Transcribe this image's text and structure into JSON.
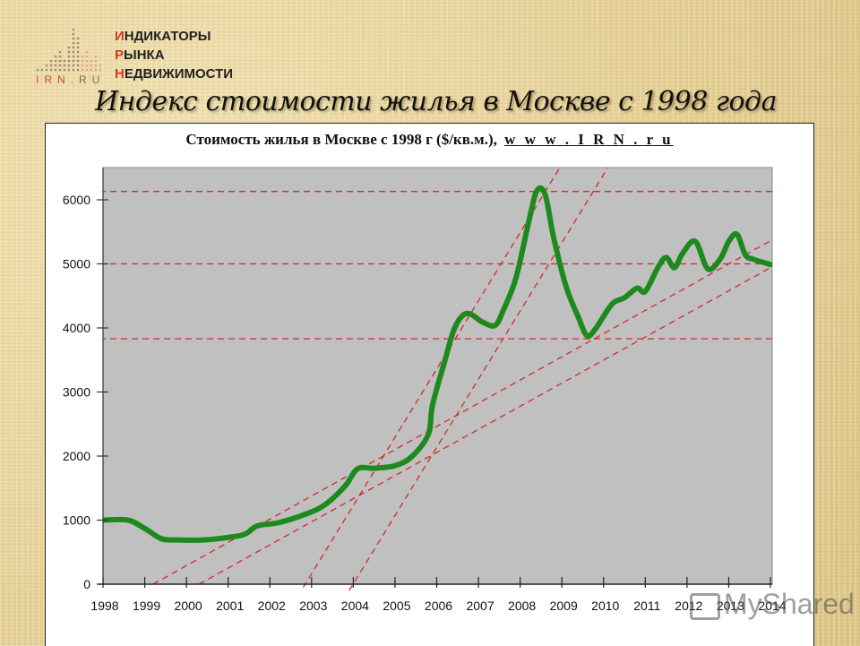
{
  "logo": {
    "lines": [
      "ИНДИКАТОРЫ",
      "РЫНКА",
      "НЕДВИЖИМОСТИ"
    ],
    "first_letters": [
      "И",
      "Р",
      "Н"
    ],
    "rest": [
      "НДИКАТОРЫ",
      "ЫНКА",
      "ЕДВИЖИМОСТИ"
    ],
    "domain_irn": "IRN",
    "domain_ru": ".RU"
  },
  "slide": {
    "title": "Индекс стоимости жилья в Москве с 1998 года"
  },
  "chart": {
    "title_text": "Стоимость жилья в Москве с 1998 г ($/кв.м.),",
    "title_link": "w w w . I R N . r u"
  },
  "watermark": {
    "text": "MyShared"
  },
  "colors": {
    "line": "#1e8a1e",
    "trend": "#d62828",
    "plot_bg": "#c0c0c0",
    "background": "#e9d7a3"
  },
  "chart_data": {
    "type": "line",
    "title": "Стоимость жилья в Москве с 1998 г ($/кв.м.), www.IRN.ru",
    "xlabel": "",
    "ylabel": "$/кв.м.",
    "x_ticks": [
      "1998",
      "1999",
      "2000",
      "2001",
      "2002",
      "2003",
      "2004",
      "2005",
      "2006",
      "2007",
      "2008",
      "2009",
      "2010",
      "2011",
      "2012",
      "2013",
      "2014"
    ],
    "y_ticks": [
      0,
      1000,
      2000,
      3000,
      4000,
      5000,
      6000
    ],
    "xlim": [
      1998,
      2014
    ],
    "ylim": [
      0,
      6500
    ],
    "grid": false,
    "legend": "none",
    "series": [
      {
        "name": "Стоимость жилья ($/кв.м.)",
        "x": [
          1998.0,
          1998.6,
          1999.0,
          1999.4,
          1999.8,
          2000.4,
          2001.0,
          2001.4,
          2001.7,
          2002.2,
          2002.8,
          2003.3,
          2003.8,
          2004.1,
          2004.5,
          2005.0,
          2005.4,
          2005.8,
          2005.9,
          2006.2,
          2006.4,
          2006.6,
          2006.8,
          2007.1,
          2007.4,
          2007.6,
          2007.9,
          2008.2,
          2008.4,
          2008.6,
          2008.8,
          2009.1,
          2009.4,
          2009.6,
          2009.8,
          2010.2,
          2010.5,
          2010.8,
          2011.0,
          2011.3,
          2011.5,
          2011.7,
          2011.9,
          2012.2,
          2012.5,
          2012.8,
          2013.0,
          2013.2,
          2013.4,
          2013.6,
          2014.0
        ],
        "y": [
          1000,
          1000,
          870,
          710,
          690,
          690,
          730,
          780,
          910,
          960,
          1080,
          1230,
          1530,
          1800,
          1810,
          1850,
          1990,
          2340,
          2800,
          3500,
          3950,
          4180,
          4220,
          4090,
          4040,
          4280,
          4780,
          5640,
          6140,
          6080,
          5420,
          4650,
          4160,
          3880,
          3980,
          4370,
          4470,
          4620,
          4570,
          4940,
          5100,
          4940,
          5170,
          5350,
          4920,
          5080,
          5350,
          5460,
          5140,
          5070,
          4990
        ]
      }
    ],
    "reference_lines": {
      "horizontal": [
        6130,
        5000,
        3830
      ],
      "trend_lines": [
        {
          "from": [
            2002.8,
            -50
          ],
          "to": [
            2008.95,
            6500
          ]
        },
        {
          "from": [
            2003.9,
            -100
          ],
          "to": [
            2010.1,
            6500
          ]
        },
        {
          "from": [
            1999.2,
            0
          ],
          "to": [
            2014.0,
            5360
          ]
        },
        {
          "from": [
            2000.3,
            0
          ],
          "to": [
            2014.0,
            4940
          ]
        }
      ]
    }
  }
}
